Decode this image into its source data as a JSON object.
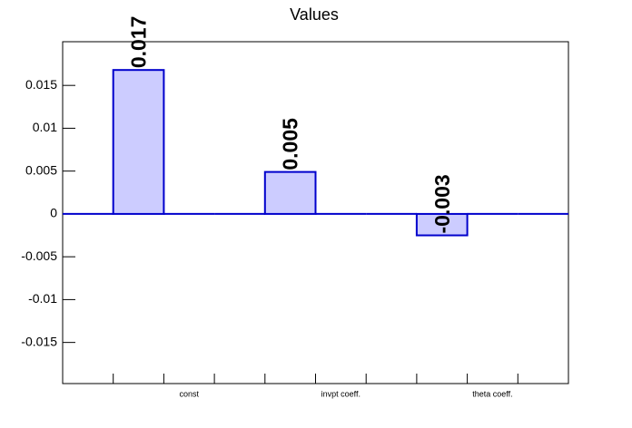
{
  "chart_data": {
    "type": "bar",
    "title": "Values",
    "categories": [
      null,
      null,
      "const",
      null,
      null,
      "invpt coeff.",
      null,
      null,
      "theta coeff.",
      null
    ],
    "values": [
      0,
      0.0168,
      0,
      0,
      0.0049,
      0,
      0,
      -0.0025,
      0,
      0
    ],
    "value_labels": [
      null,
      "0.017",
      null,
      null,
      "0.005",
      null,
      null,
      "-0.003",
      null,
      null
    ],
    "color": "#ccccff",
    "edgecolor": "#0000cc",
    "ylim": [
      -0.0198,
      0.0201
    ],
    "yticks": [
      -0.015,
      -0.01,
      -0.005,
      0,
      0.005,
      0.01,
      0.015
    ],
    "grid": false
  }
}
